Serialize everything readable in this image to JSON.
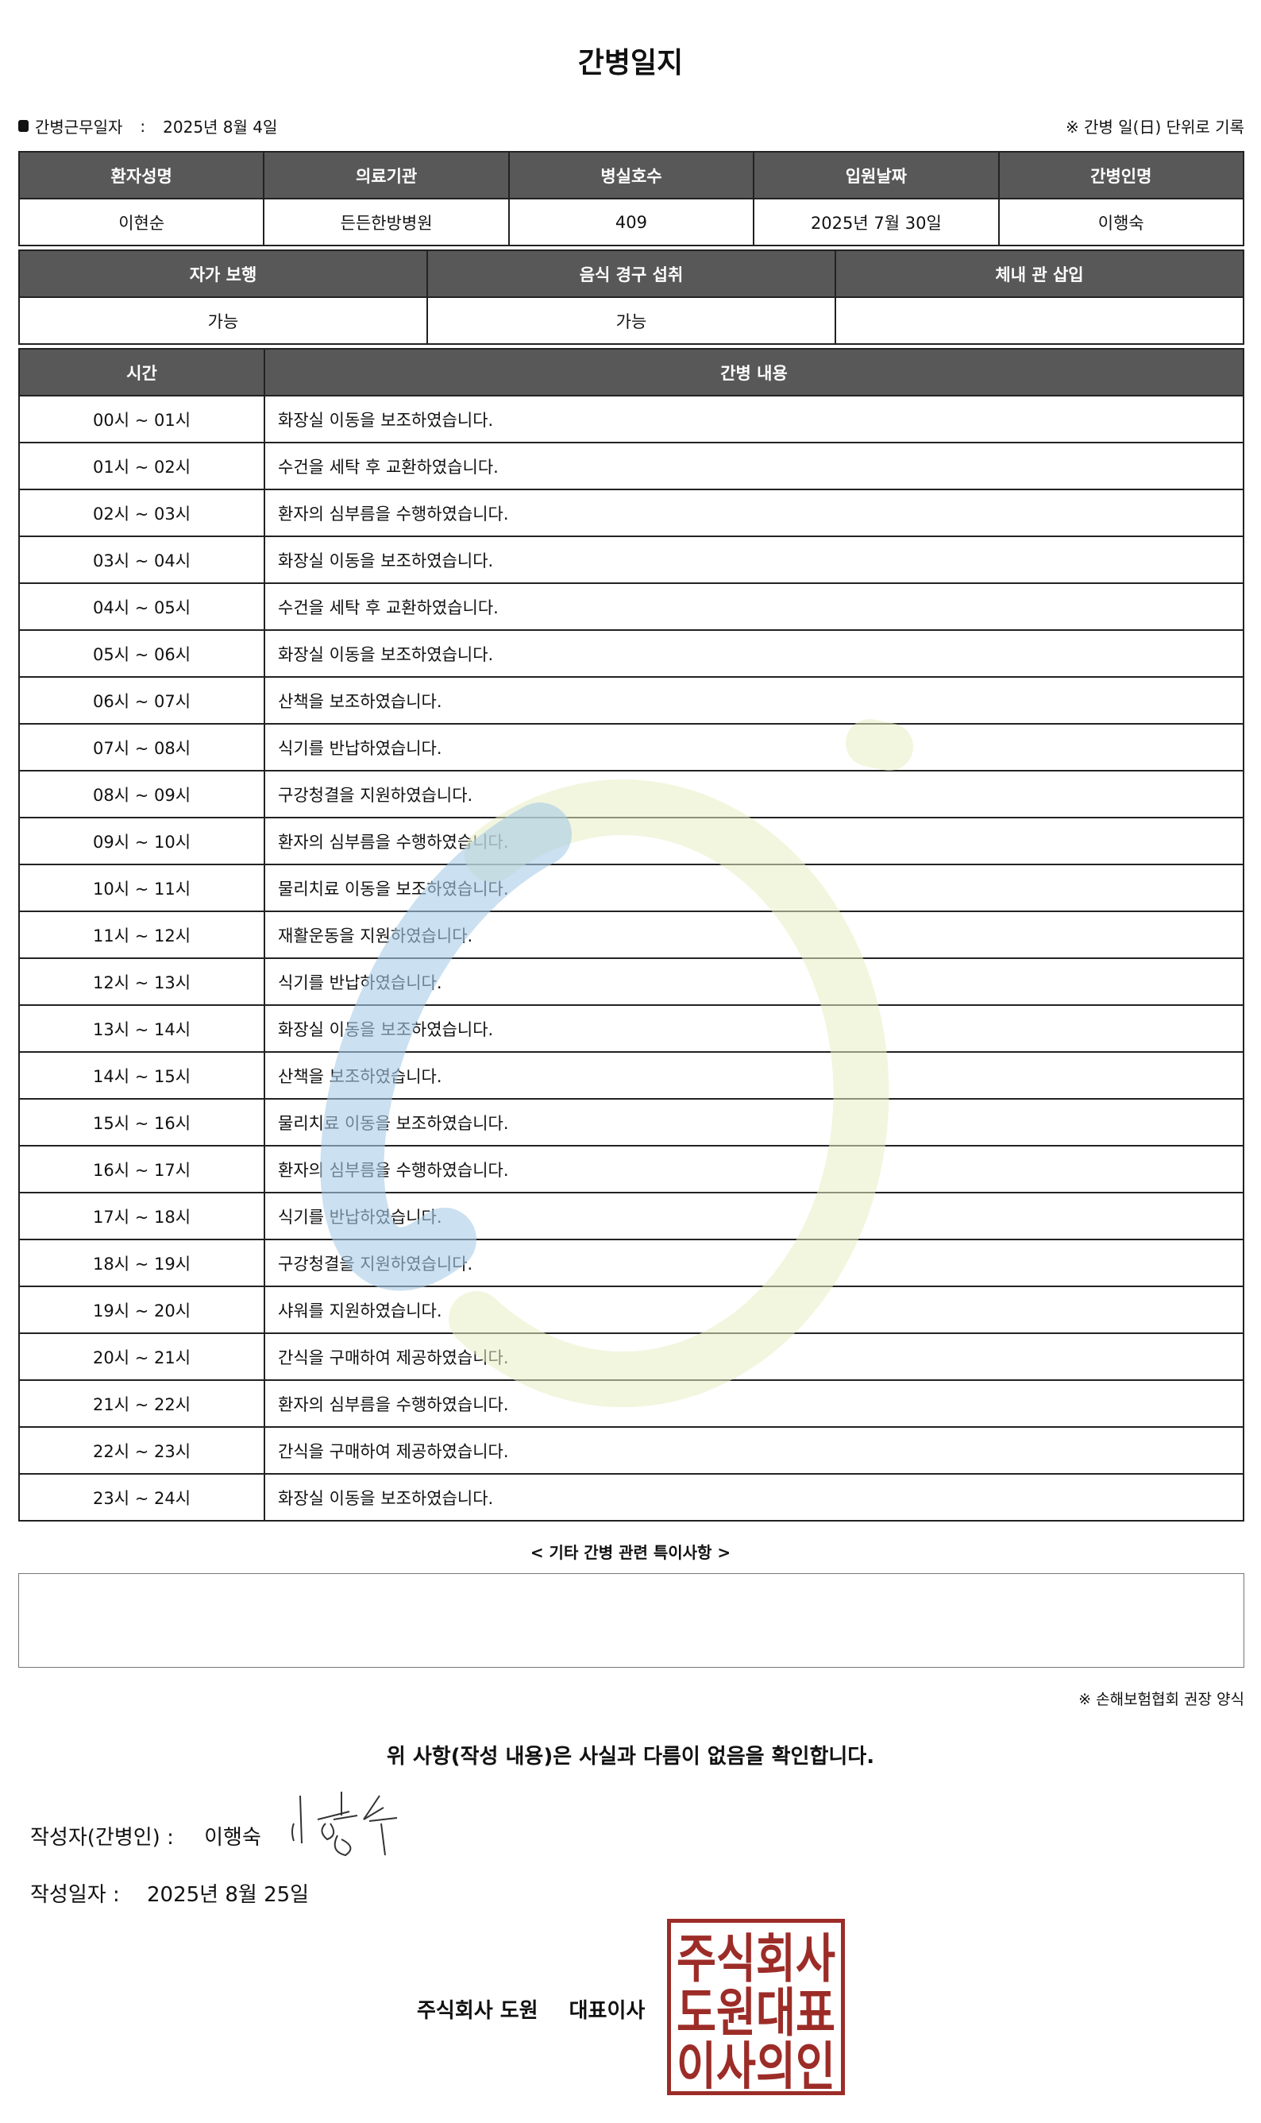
{
  "title": "간병일지",
  "info": {
    "label": "간병근무일자",
    "sep": ":",
    "date": "2025년 8월 4일",
    "note": "※ 간병 일(日) 단위로 기록"
  },
  "table1": {
    "headers": [
      "환자성명",
      "의료기관",
      "병실호수",
      "입원날짜",
      "간병인명"
    ],
    "values": [
      "이현순",
      "든든한방병원",
      "409",
      "2025년 7월 30일",
      "이행숙"
    ]
  },
  "table2": {
    "headers": [
      "자가 보행",
      "음식 경구 섭취",
      "체내 관 삽입"
    ],
    "values": [
      "가능",
      "가능",
      ""
    ]
  },
  "log": {
    "headers": [
      "시간",
      "간병 내용"
    ],
    "rows": [
      [
        "00시 ~ 01시",
        "화장실 이동을 보조하였습니다."
      ],
      [
        "01시 ~ 02시",
        "수건을 세탁 후 교환하였습니다."
      ],
      [
        "02시 ~ 03시",
        "환자의 심부름을 수행하였습니다."
      ],
      [
        "03시 ~ 04시",
        "화장실 이동을 보조하였습니다."
      ],
      [
        "04시 ~ 05시",
        "수건을 세탁 후 교환하였습니다."
      ],
      [
        "05시 ~ 06시",
        "화장실 이동을 보조하였습니다."
      ],
      [
        "06시 ~ 07시",
        "산책을 보조하였습니다."
      ],
      [
        "07시 ~ 08시",
        "식기를 반납하였습니다."
      ],
      [
        "08시 ~ 09시",
        "구강청결을 지원하였습니다."
      ],
      [
        "09시 ~ 10시",
        "환자의 심부름을 수행하였습니다."
      ],
      [
        "10시 ~ 11시",
        "물리치료 이동을 보조하였습니다."
      ],
      [
        "11시 ~ 12시",
        "재활운동을 지원하였습니다."
      ],
      [
        "12시 ~ 13시",
        "식기를 반납하였습니다."
      ],
      [
        "13시 ~ 14시",
        "화장실 이동을 보조하였습니다."
      ],
      [
        "14시 ~ 15시",
        "산책을 보조하였습니다."
      ],
      [
        "15시 ~ 16시",
        "물리치료 이동을 보조하였습니다."
      ],
      [
        "16시 ~ 17시",
        "환자의 심부름을 수행하였습니다."
      ],
      [
        "17시 ~ 18시",
        "식기를 반납하였습니다."
      ],
      [
        "18시 ~ 19시",
        "구강청결을 지원하였습니다."
      ],
      [
        "19시 ~ 20시",
        "샤워를 지원하였습니다."
      ],
      [
        "20시 ~ 21시",
        "간식을 구매하여 제공하였습니다."
      ],
      [
        "21시 ~ 22시",
        "환자의 심부름을 수행하였습니다."
      ],
      [
        "22시 ~ 23시",
        "간식을 구매하여 제공하였습니다."
      ],
      [
        "23시 ~ 24시",
        "화장실 이동을 보조하였습니다."
      ]
    ]
  },
  "remarks": {
    "title": "< 기타 간병 관련 특이사항 >",
    "content": ""
  },
  "form_note": "※ 손해보험협회 권장 양식",
  "confirm": "위 사항(작성 내용)은 사실과 다름이 없음을 확인합니다.",
  "writer": {
    "label": "작성자(간병인) :",
    "name": "이행숙",
    "signature": "이행숙"
  },
  "written_date": {
    "label": "작성일자 :",
    "value": "2025년 8월 25일"
  },
  "company": {
    "name": "주식회사 도원",
    "role": "대표이사"
  },
  "stamp": {
    "text": "주식회사도원대표이사의인"
  },
  "colors": {
    "header_bg": "#585858",
    "stamp": "#9c2c27",
    "watermark_blue": "#c5dcee",
    "watermark_green": "#eef3d4"
  }
}
